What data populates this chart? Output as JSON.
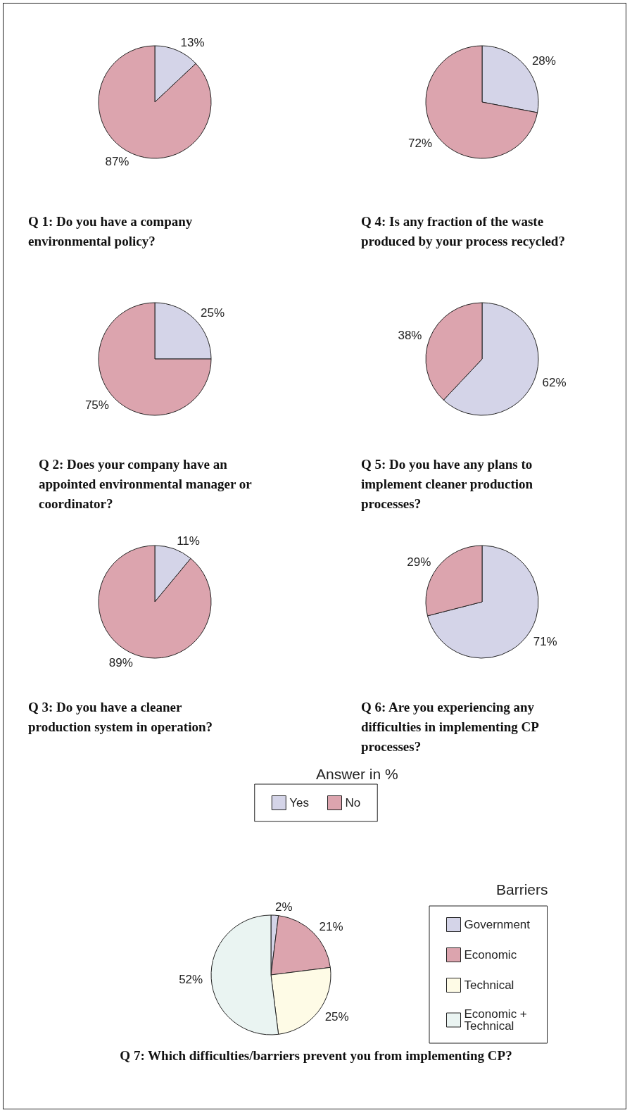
{
  "chart_data": [
    {
      "type": "pie",
      "title": "Q 1: Do you have a company environmental policy?",
      "categories": [
        null,
        null
      ],
      "values": [
        13,
        87
      ],
      "colors": [
        "#d4d4e8",
        "#dca4ae"
      ],
      "value_labels": [
        "13%",
        "87%"
      ]
    },
    {
      "type": "pie",
      "title": "Q 4: Is any fraction of the waste produced by your process recycled?",
      "categories": [
        null,
        null
      ],
      "values": [
        28,
        72
      ],
      "colors": [
        "#d4d4e8",
        "#dca4ae"
      ],
      "value_labels": [
        "28%",
        "72%"
      ]
    },
    {
      "type": "pie",
      "title": "Q 2: Does your company have an appointed environmental manager or coordinator?",
      "categories": [
        null,
        null
      ],
      "values": [
        25,
        75
      ],
      "colors": [
        "#d4d4e8",
        "#dca4ae"
      ],
      "value_labels": [
        "25%",
        "75%"
      ]
    },
    {
      "type": "pie",
      "title": "Q 5: Do you have any plans to implement cleaner production processes?",
      "categories": [
        null,
        null
      ],
      "values": [
        62,
        38
      ],
      "colors": [
        "#d4d4e8",
        "#dca4ae"
      ],
      "value_labels": [
        "62%",
        "38%"
      ]
    },
    {
      "type": "pie",
      "title": "Q 3: Do you have a cleaner production system in operation?",
      "categories": [
        null,
        null
      ],
      "values": [
        11,
        89
      ],
      "colors": [
        "#d4d4e8",
        "#dca4ae"
      ],
      "value_labels": [
        "11%",
        "89%"
      ]
    },
    {
      "type": "pie",
      "title": "Q 6: Are you experiencing any difficulties in implementing CP processes?",
      "categories": [
        "Yes",
        "No"
      ],
      "values": [
        71,
        29
      ],
      "colors": [
        "#d4d4e8",
        "#dca4ae"
      ],
      "value_labels": [
        "71%",
        "29%"
      ],
      "legend": "bottom",
      "legend_title": "Answer in %"
    },
    {
      "type": "pie",
      "title": "Q 7: Which difficulties/barriers prevent you from implementing CP?",
      "categories": [
        "Government",
        "Economic",
        "Technical",
        "Economic + Technical"
      ],
      "values": [
        2,
        21,
        25,
        52
      ],
      "colors": [
        "#d4d4e8",
        "#dca4ae",
        "#fefbe6",
        "#eaf4f2"
      ],
      "value_labels": [
        "2%",
        "21%",
        "25%",
        "52%"
      ],
      "legend": "right",
      "legend_title": "Barriers"
    }
  ]
}
